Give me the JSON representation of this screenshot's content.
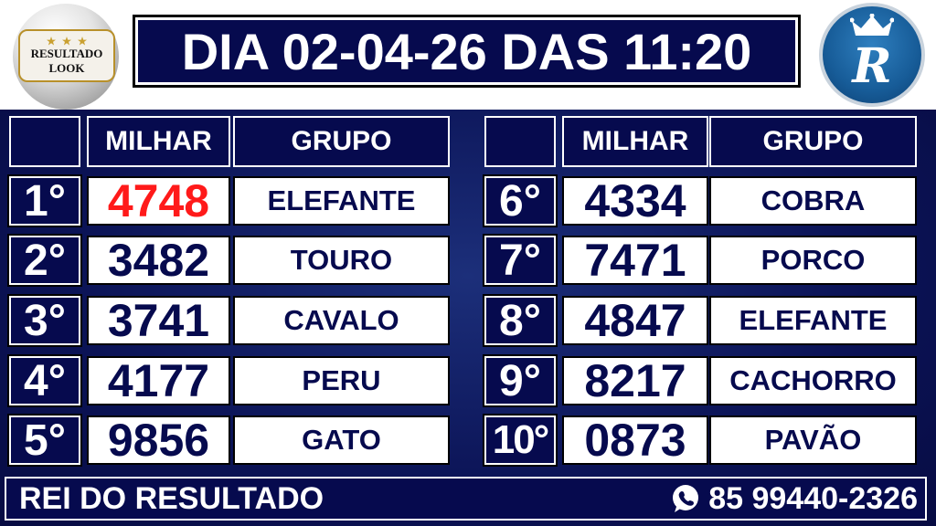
{
  "header": {
    "logo_left_text": [
      "RESULTADO",
      "LOOK"
    ],
    "title": "DIA 02-04-26 DAS 11:20",
    "logo_right_text": "Rei R"
  },
  "columns": {
    "milhar": "MILHAR",
    "grupo": "GRUPO"
  },
  "results": [
    {
      "rank": "1°",
      "milhar": "4748",
      "grupo": "ELEFANTE",
      "highlight": "#ff1a1a"
    },
    {
      "rank": "2°",
      "milhar": "3482",
      "grupo": "TOURO"
    },
    {
      "rank": "3°",
      "milhar": "3741",
      "grupo": "CAVALO"
    },
    {
      "rank": "4°",
      "milhar": "4177",
      "grupo": "PERU"
    },
    {
      "rank": "5°",
      "milhar": "9856",
      "grupo": "GATO"
    },
    {
      "rank": "6°",
      "milhar": "4334",
      "grupo": "COBRA"
    },
    {
      "rank": "7°",
      "milhar": "7471",
      "grupo": "PORCO"
    },
    {
      "rank": "8°",
      "milhar": "4847",
      "grupo": "ELEFANTE"
    },
    {
      "rank": "9°",
      "milhar": "8217",
      "grupo": "CACHORRO"
    },
    {
      "rank": "10°",
      "milhar": "0873",
      "grupo": "PAVÃO"
    }
  ],
  "footer": {
    "brand": "REI DO RESULTADO",
    "phone": "85 99440-2326",
    "phone_icon": "whatsapp-icon"
  },
  "colors": {
    "navy": "#060a4e",
    "highlight": "#ff1a1a"
  }
}
